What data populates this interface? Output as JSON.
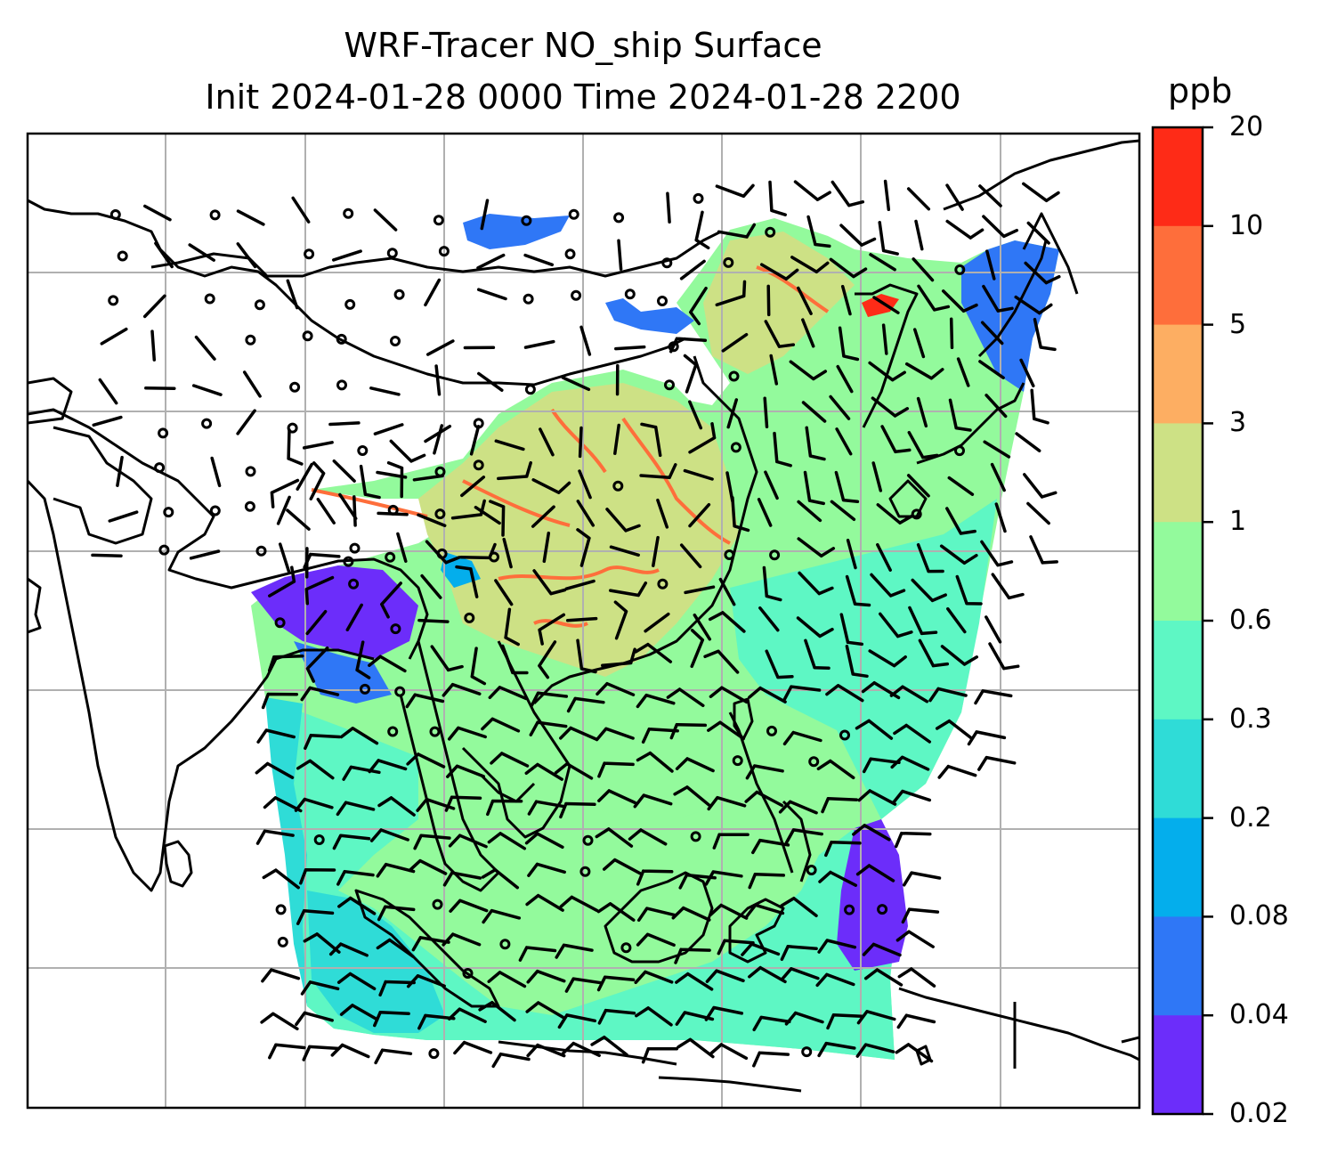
{
  "title": {
    "line1": "WRF-Tracer NO_ship Surface",
    "line2": "Init 2024-01-28 0000 Time 2024-01-28 2200"
  },
  "colorbar": {
    "unit": "ppb",
    "ticks": [
      "20",
      "10",
      "5",
      "3",
      "1",
      "0.6",
      "0.3",
      "0.2",
      "0.08",
      "0.04",
      "0.02"
    ],
    "colors_top_to_bottom": [
      "#fe2b17",
      "#fe6e3b",
      "#fdae62",
      "#cde185",
      "#93fa9c",
      "#5ef7c4",
      "#2fdcd7",
      "#04aeec",
      "#2f77f6",
      "#6c2dfa"
    ]
  },
  "colors": {
    "gridline": "#b0b0b0",
    "coastline": "#000000",
    "background": "#ffffff"
  }
}
